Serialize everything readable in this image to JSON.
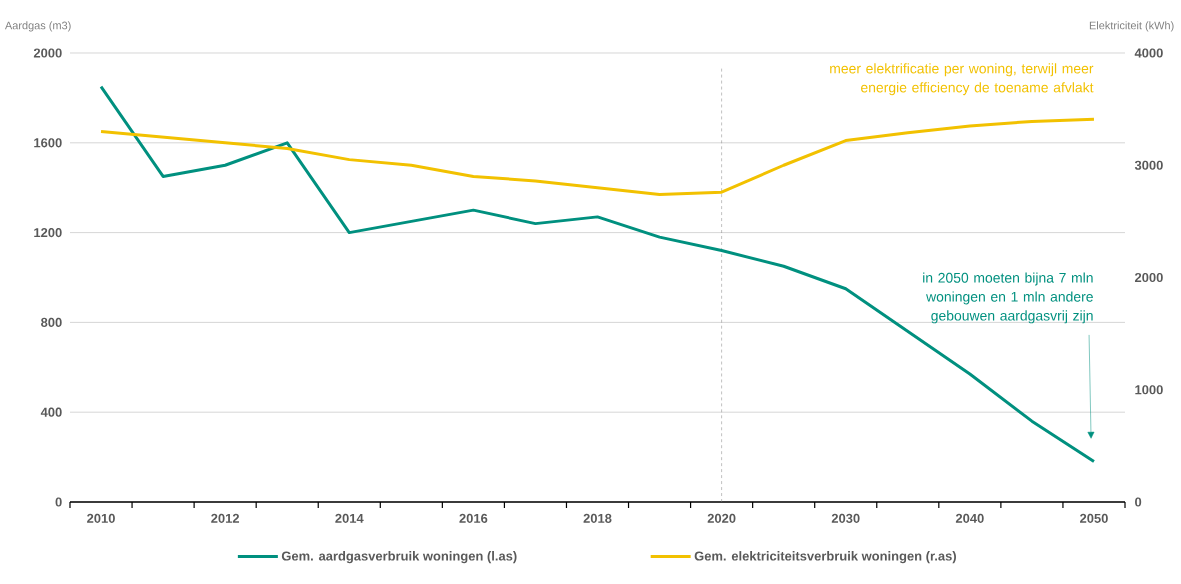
{
  "chart_data": {
    "type": "line",
    "ylabel": "Aardgas (m3)",
    "y2label": "Elektriciteit  (kWh)",
    "categories": [
      "2010",
      null,
      "2012",
      null,
      "2014",
      null,
      "2016",
      null,
      "2018",
      null,
      "2020",
      null,
      "2030",
      null,
      "2040",
      null,
      "2050"
    ],
    "series": [
      {
        "name": "Gem. aardgasverbruik woningen (l.as)",
        "color": "#00907f",
        "values": [
          1850,
          1450,
          1500,
          1600,
          1200,
          1250,
          1300,
          1240,
          1270,
          1180,
          1120,
          1050,
          950,
          760,
          570,
          360,
          180
        ]
      },
      {
        "name": "Gem. elektriciteitsverbruik woningen (r.as)",
        "color": "#f2c100",
        "axis": "y2",
        "values": [
          3300,
          3250,
          3200,
          3150,
          3050,
          3000,
          2900,
          2860,
          2800,
          2740,
          2760,
          3000,
          3220,
          3290,
          3350,
          3390,
          3410
        ]
      }
    ],
    "ylim": [
      0,
      2000
    ],
    "yticks": [
      0,
      400,
      800,
      1200,
      1600,
      2000
    ],
    "y2lim": [
      0,
      4000
    ],
    "y2ticks": [
      0,
      1000,
      2000,
      3000,
      4000
    ],
    "grid": "y",
    "legend": "bottom",
    "marker": "none",
    "line_style": "solid",
    "ref_lines": [
      {
        "axis": "x",
        "value": "2020",
        "color": "#808080",
        "line_style": "dashed"
      }
    ],
    "annotations": [
      "meer elektrificatie per woning, terwijl meer energie efficiency de toename afvlakt",
      "in 2050 moeten bijna 7 mln woningen en 1 mln andere gebouwen aardgasvrij zijn"
    ]
  }
}
